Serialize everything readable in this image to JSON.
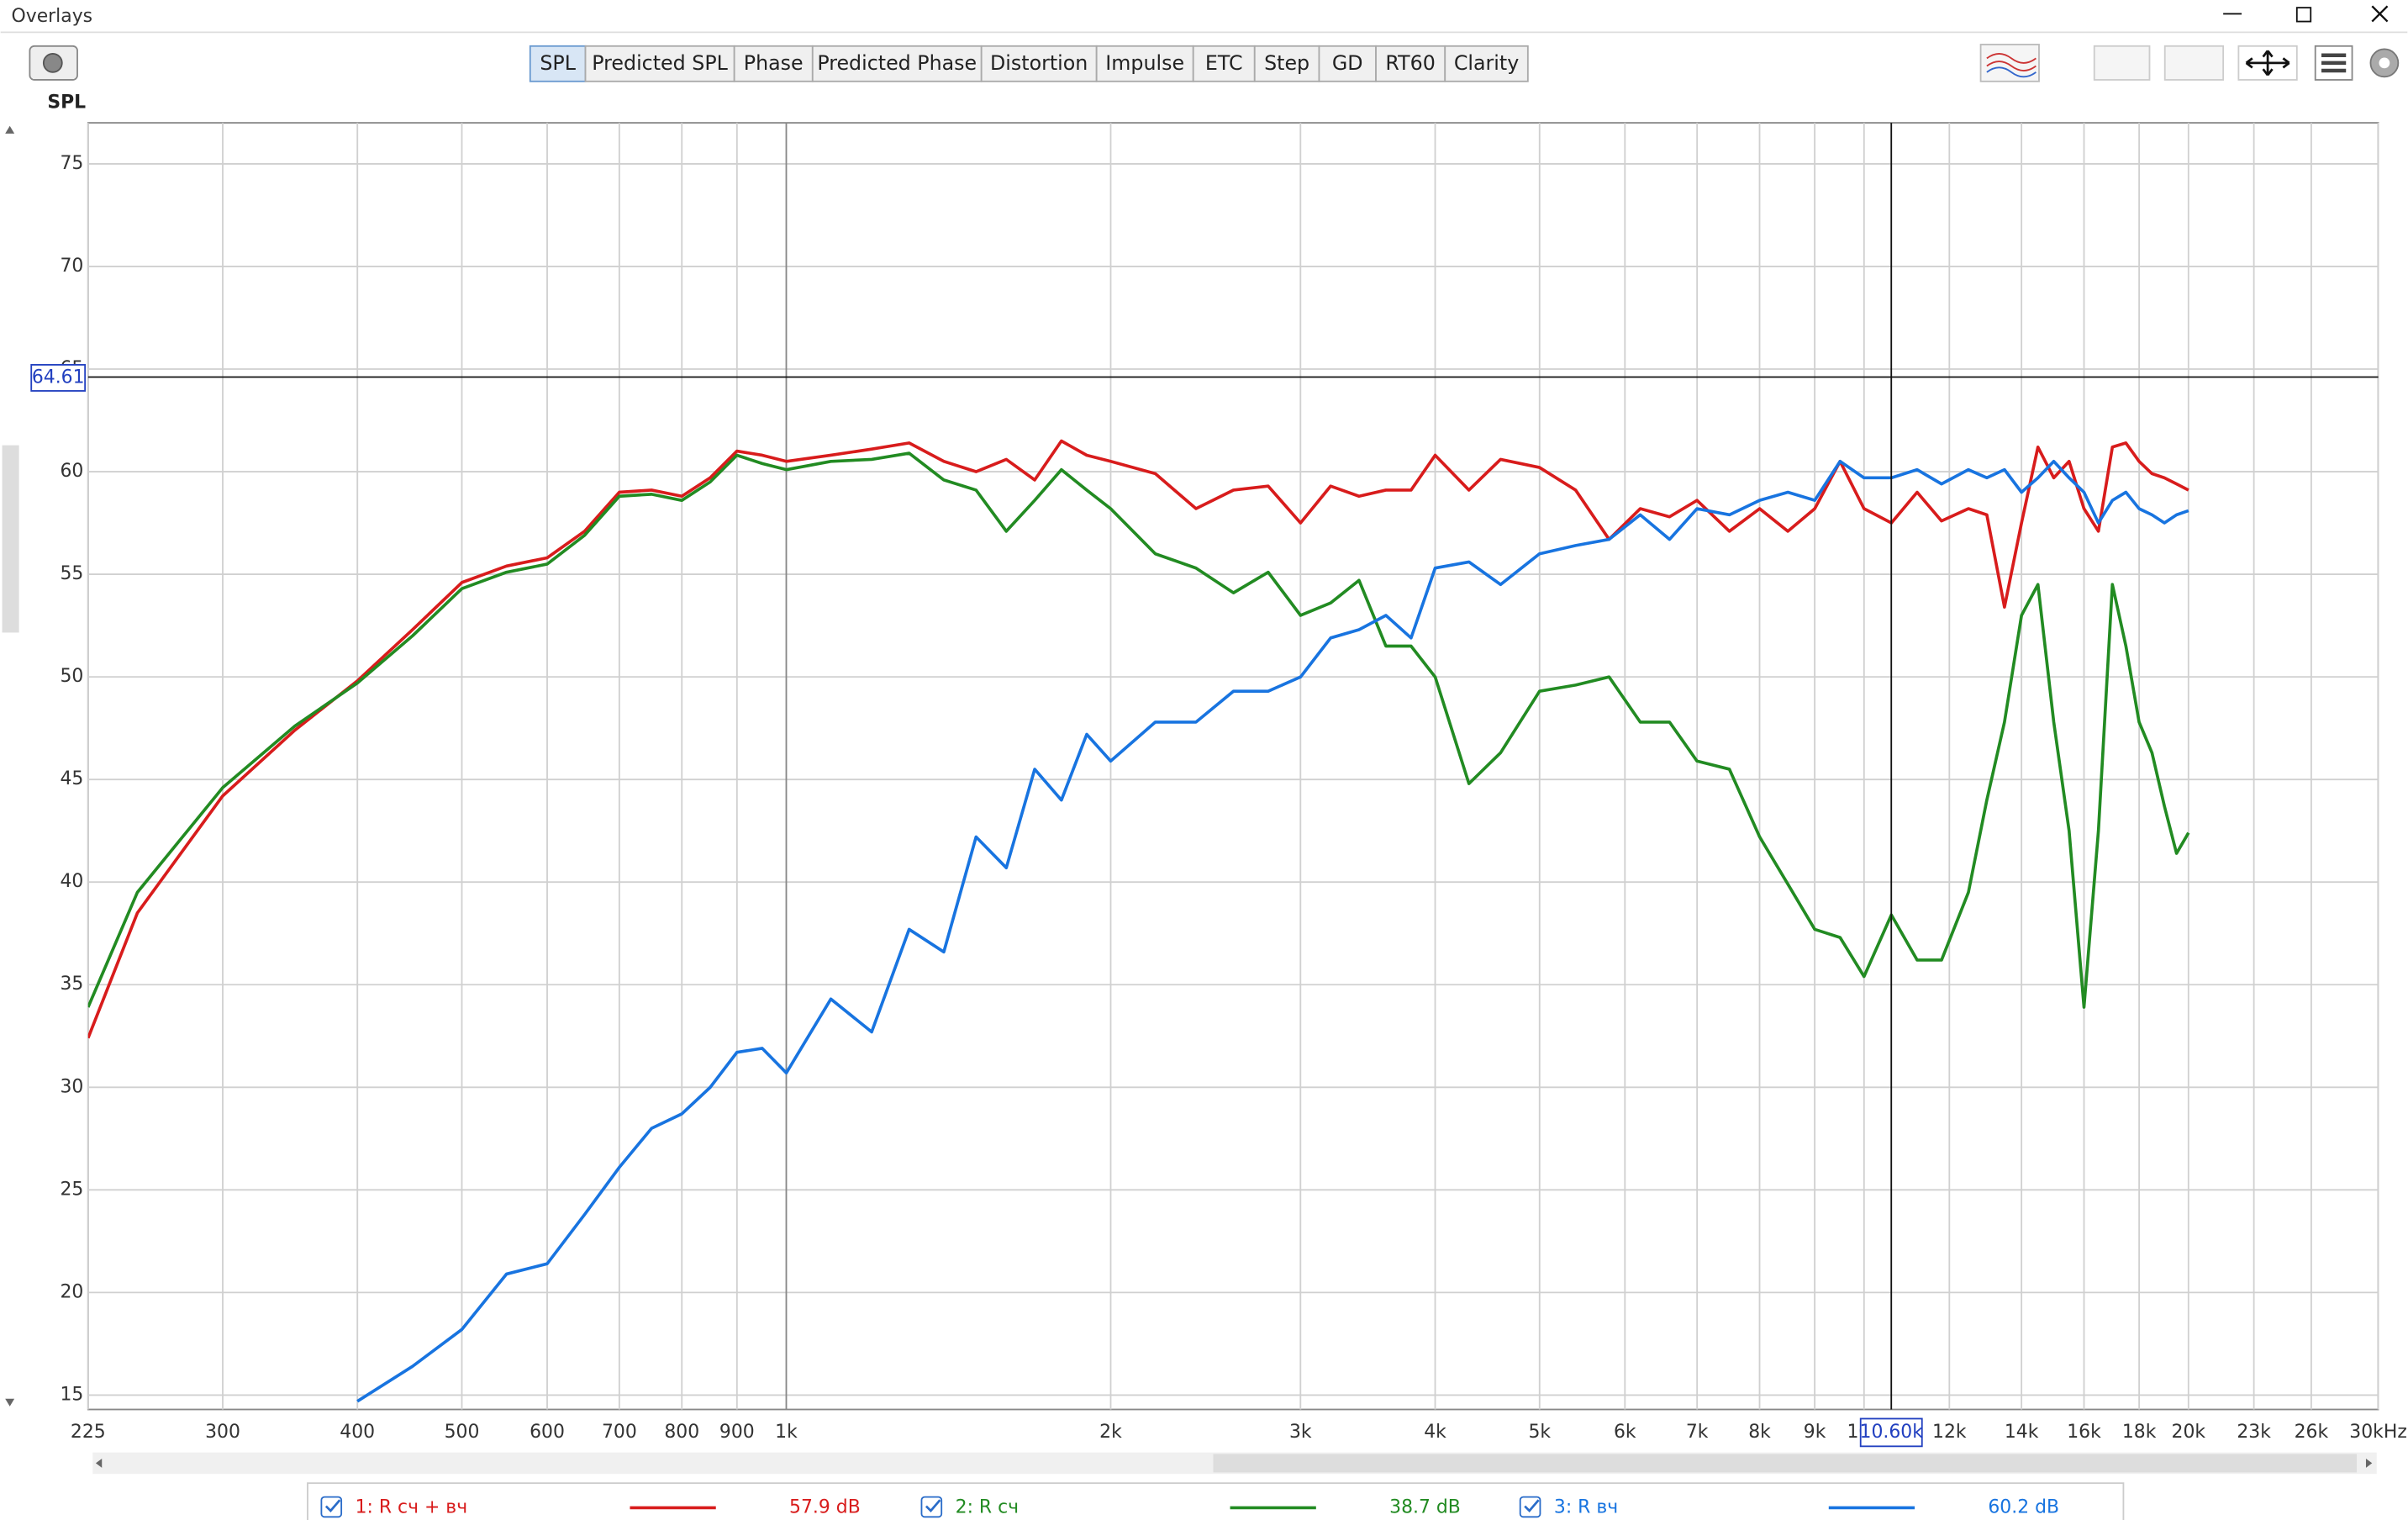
{
  "window": {
    "title": "Overlays"
  },
  "tabs": [
    "SPL",
    "Predicted SPL",
    "Phase",
    "Predicted Phase",
    "Distortion",
    "Impulse",
    "ETC",
    "Step",
    "GD",
    "RT60",
    "Clarity"
  ],
  "active_tab": 0,
  "chart_data": {
    "type": "line",
    "y_label": "SPL",
    "log_x": true,
    "grid": true,
    "xlim": [
      225,
      30000
    ],
    "ylim": [
      14.3,
      77
    ],
    "xticks": [
      225,
      300,
      400,
      500,
      600,
      700,
      800,
      900,
      {
        "value": 1000,
        "label": "1k"
      },
      {
        "value": 2000,
        "label": "2k"
      },
      {
        "value": 3000,
        "label": "3k"
      },
      {
        "value": 4000,
        "label": "4k"
      },
      {
        "value": 5000,
        "label": "5k"
      },
      {
        "value": 6000,
        "label": "6k"
      },
      {
        "value": 7000,
        "label": "7k"
      },
      {
        "value": 8000,
        "label": "8k"
      },
      {
        "value": 9000,
        "label": "9k"
      },
      {
        "value": 10000,
        "label": "10k"
      },
      {
        "value": 12000,
        "label": "12k"
      },
      {
        "value": 14000,
        "label": "14k"
      },
      {
        "value": 16000,
        "label": "16k"
      },
      {
        "value": 18000,
        "label": "18k"
      },
      {
        "value": 20000,
        "label": "20k"
      },
      {
        "value": 23000,
        "label": "23k"
      },
      {
        "value": 26000,
        "label": "26k"
      },
      {
        "value": 30000,
        "label": "30kHz"
      }
    ],
    "yticks": [
      15,
      20,
      25,
      30,
      35,
      40,
      45,
      50,
      55,
      60,
      65,
      70,
      75
    ],
    "cursor": {
      "y": 64.61,
      "x": {
        "value": 10600,
        "label": "10.60k"
      }
    },
    "x": [
      225,
      250,
      300,
      350,
      400,
      450,
      500,
      550,
      600,
      650,
      700,
      750,
      800,
      850,
      900,
      950,
      1000,
      1100,
      1200,
      1300,
      1400,
      1500,
      1600,
      1700,
      1800,
      1900,
      2000,
      2200,
      2400,
      2600,
      2800,
      3000,
      3200,
      3400,
      3600,
      3800,
      4000,
      4300,
      4600,
      5000,
      5400,
      5800,
      6200,
      6600,
      7000,
      7500,
      8000,
      8500,
      9000,
      9500,
      10000,
      10600,
      11200,
      11800,
      12500,
      13000,
      13500,
      14000,
      14500,
      15000,
      15500,
      16000,
      16500,
      17000,
      17500,
      18000,
      18500,
      19000,
      19500,
      20000
    ],
    "series": [
      {
        "name": "1: R сч + вч",
        "color": "#d81c1c",
        "readout": "57.9 dB",
        "values": [
          32.4,
          38.5,
          44.2,
          47.4,
          49.8,
          52.3,
          54.6,
          55.4,
          55.8,
          57.1,
          59.0,
          59.1,
          58.8,
          59.7,
          61.0,
          60.8,
          60.5,
          60.8,
          61.1,
          61.4,
          60.5,
          60.0,
          60.6,
          59.6,
          61.5,
          60.8,
          60.5,
          59.9,
          58.2,
          59.1,
          59.3,
          57.5,
          59.3,
          58.8,
          59.1,
          59.1,
          60.8,
          59.1,
          60.6,
          60.2,
          59.1,
          56.7,
          58.2,
          57.8,
          58.6,
          57.1,
          58.2,
          57.1,
          58.2,
          60.5,
          58.2,
          57.5,
          59.0,
          57.6,
          58.2,
          57.9,
          53.4,
          57.5,
          61.2,
          59.7,
          60.5,
          58.2,
          57.1,
          61.2,
          61.4,
          60.5,
          59.9,
          59.7,
          59.4,
          59.1
        ]
      },
      {
        "name": "2: R сч",
        "color": "#228b22",
        "readout": "38.7 dB",
        "values": [
          33.9,
          39.5,
          44.6,
          47.6,
          49.7,
          52.0,
          54.3,
          55.1,
          55.5,
          56.9,
          58.8,
          58.9,
          58.6,
          59.5,
          60.8,
          60.4,
          60.1,
          60.5,
          60.6,
          60.9,
          59.6,
          59.1,
          57.1,
          58.6,
          60.1,
          59.1,
          58.2,
          56.0,
          55.3,
          54.1,
          55.1,
          53.0,
          53.6,
          54.7,
          51.5,
          51.5,
          50.0,
          44.8,
          46.3,
          49.3,
          49.6,
          50.0,
          47.8,
          47.8,
          45.9,
          45.5,
          42.2,
          39.9,
          37.7,
          37.3,
          35.4,
          38.4,
          36.2,
          36.2,
          39.5,
          44.0,
          47.8,
          53.0,
          54.5,
          47.8,
          42.5,
          33.9,
          42.5,
          54.5,
          51.5,
          47.8,
          46.3,
          43.7,
          41.4,
          42.4
        ]
      },
      {
        "name": "3: R вч",
        "color": "#1874e0",
        "readout": "60.2 dB",
        "values": [
          null,
          null,
          null,
          null,
          14.7,
          16.4,
          18.2,
          20.9,
          21.4,
          23.8,
          26.1,
          28.0,
          28.7,
          30.0,
          31.7,
          31.9,
          30.7,
          34.3,
          32.7,
          37.7,
          36.6,
          42.2,
          40.7,
          45.5,
          44.0,
          47.2,
          45.9,
          47.8,
          47.8,
          49.3,
          49.3,
          50.0,
          51.9,
          52.3,
          53.0,
          51.9,
          55.3,
          55.6,
          54.5,
          56.0,
          56.4,
          56.7,
          57.9,
          56.7,
          58.2,
          57.9,
          58.6,
          59.0,
          58.6,
          60.5,
          59.7,
          59.7,
          60.1,
          59.4,
          60.1,
          59.7,
          60.1,
          59.0,
          59.7,
          60.5,
          59.7,
          59.0,
          57.5,
          58.6,
          59.0,
          58.2,
          57.9,
          57.5,
          57.9,
          58.1
        ]
      }
    ]
  }
}
